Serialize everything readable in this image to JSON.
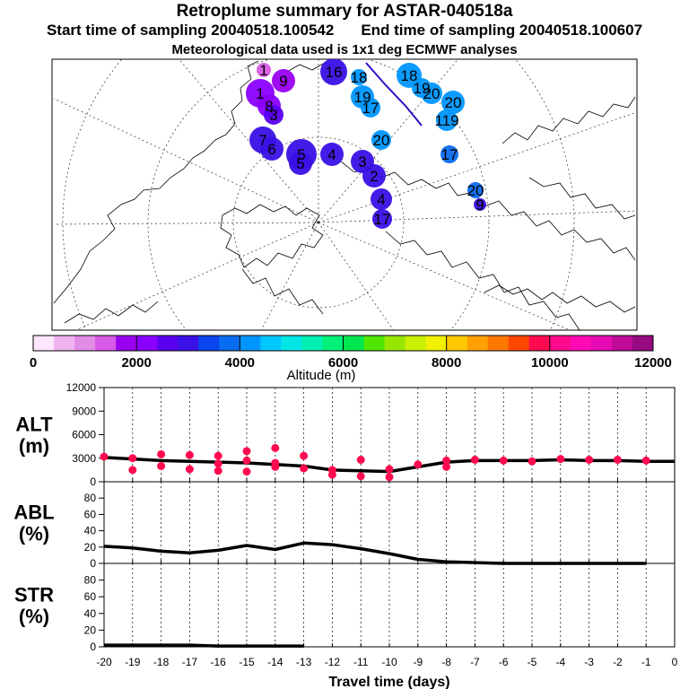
{
  "header": {
    "title": "Retroplume summary for ASTAR-040518a",
    "start_time": "Start time of sampling 20040518.100542",
    "end_time": "End time of sampling 20040518.100607",
    "met_info": "Meteorological data used is 1x1 deg ECMWF analyses"
  },
  "colorbar": {
    "label": "Altitude (m)",
    "ticks": [
      "0",
      "2000",
      "4000",
      "6000",
      "8000",
      "10000",
      "12000"
    ],
    "min": 0,
    "max": 12000,
    "step": 500,
    "colors": [
      "#ffe6ff",
      "#f0b4f0",
      "#e38ce6",
      "#d95ae6",
      "#9a00f0",
      "#8a00ff",
      "#5a00f0",
      "#3a10e6",
      "#0a46ee",
      "#0a6cf0",
      "#0096ff",
      "#00c8ff",
      "#00e6e6",
      "#00f0b4",
      "#00f078",
      "#00e650",
      "#50e600",
      "#96e600",
      "#c8f000",
      "#f0f000",
      "#ffc800",
      "#ffa000",
      "#ff7800",
      "#ff4600",
      "#ff0a50",
      "#ff0a8c",
      "#ff0ab4",
      "#e60ab4",
      "#be0a96",
      "#960a82"
    ]
  },
  "map": {
    "plume_color": "#2814c8",
    "labels": [
      {
        "t": "1",
        "c": "#d95ae6"
      },
      {
        "t": "9",
        "c": "#9a00f0"
      },
      {
        "t": "1",
        "c": "#8a00ff"
      },
      {
        "t": "8",
        "c": "#8a00ff"
      },
      {
        "t": "3",
        "c": "#5a00f0"
      },
      {
        "t": "7",
        "c": "#3a10e6"
      },
      {
        "t": "6",
        "c": "#3a10e6"
      },
      {
        "t": "5",
        "c": "#3a10e6"
      },
      {
        "t": "5",
        "c": "#3a10e6"
      },
      {
        "t": "4",
        "c": "#3a10e6"
      },
      {
        "t": "3",
        "c": "#3a10e6"
      },
      {
        "t": "2",
        "c": "#3a10e6"
      },
      {
        "t": "4",
        "c": "#3a10e6"
      },
      {
        "t": "17",
        "c": "#3a10e6"
      },
      {
        "t": "16",
        "c": "#3a10e6"
      },
      {
        "t": "18",
        "c": "#0096ff"
      },
      {
        "t": "19",
        "c": "#0096ff"
      },
      {
        "t": "17",
        "c": "#0096ff"
      },
      {
        "t": "18",
        "c": "#0096ff"
      },
      {
        "t": "19",
        "c": "#0096ff"
      },
      {
        "t": "20",
        "c": "#0096ff"
      },
      {
        "t": "20",
        "c": "#0096ff"
      },
      {
        "t": "119",
        "c": "#0096ff"
      },
      {
        "t": "20",
        "c": "#0096ff"
      },
      {
        "t": "17",
        "c": "#0a6cf0"
      },
      {
        "t": "20",
        "c": "#0a6cf0"
      },
      {
        "t": "9",
        "c": "#3a10e6"
      }
    ]
  },
  "chart_data": [
    {
      "type": "scatter",
      "ylabel": "ALT\n(m)",
      "ylabel_lines": [
        "ALT",
        "(m)"
      ],
      "ylim": [
        0,
        12000
      ],
      "yticks": [
        "12000",
        "9000",
        "6000",
        "3000",
        "0"
      ],
      "ytick_values": [
        12000,
        9000,
        6000,
        3000,
        0
      ],
      "series": [
        {
          "name": "mean altitude",
          "type": "line",
          "x": [
            -20,
            -19,
            -18,
            -17,
            -16,
            -15,
            -14,
            -13,
            -12,
            -11,
            -10,
            -9,
            -8,
            -7,
            -6,
            -5,
            -4,
            -3,
            -2,
            -1,
            0
          ],
          "y": [
            3100,
            2900,
            2700,
            2600,
            2500,
            2400,
            2200,
            2000,
            1500,
            1400,
            1300,
            1900,
            2500,
            2700,
            2700,
            2700,
            2800,
            2700,
            2700,
            2600,
            2600
          ]
        },
        {
          "name": "cluster altitudes",
          "type": "scatter",
          "color": "#ff0a50",
          "points": [
            [
              -20,
              3200
            ],
            [
              -19,
              3000
            ],
            [
              -19,
              1500
            ],
            [
              -18,
              3500
            ],
            [
              -18,
              2000
            ],
            [
              -17,
              3400
            ],
            [
              -17,
              1600
            ],
            [
              -16,
              3300
            ],
            [
              -16,
              2300
            ],
            [
              -16,
              1400
            ],
            [
              -15,
              3900
            ],
            [
              -15,
              2700
            ],
            [
              -15,
              1300
            ],
            [
              -14,
              4300
            ],
            [
              -14,
              2400
            ],
            [
              -14,
              1900
            ],
            [
              -13,
              3300
            ],
            [
              -13,
              1700
            ],
            [
              -12,
              1500
            ],
            [
              -12,
              900
            ],
            [
              -11,
              2800
            ],
            [
              -11,
              700
            ],
            [
              -10,
              1600
            ],
            [
              -10,
              600
            ],
            [
              -9,
              2200
            ],
            [
              -8,
              2700
            ],
            [
              -8,
              1900
            ],
            [
              -7,
              2800
            ],
            [
              -6,
              2700
            ],
            [
              -5,
              2600
            ],
            [
              -4,
              2900
            ],
            [
              -3,
              2800
            ],
            [
              -2,
              2800
            ],
            [
              -1,
              2700
            ]
          ]
        }
      ]
    },
    {
      "type": "line",
      "ylabel": "ABL\n(%)",
      "ylabel_lines": [
        "ABL",
        "(%)"
      ],
      "ylim": [
        0,
        100
      ],
      "yticks": [
        "80",
        "60",
        "40",
        "20",
        "0"
      ],
      "ytick_values": [
        80,
        60,
        40,
        20,
        0
      ],
      "series": [
        {
          "name": "ABL fraction",
          "x": [
            -20,
            -19,
            -18,
            -17,
            -16,
            -15,
            -14,
            -13,
            -12,
            -11,
            -10,
            -9,
            -8,
            -7,
            -6,
            -5,
            -4,
            -3,
            -2,
            -1
          ],
          "y": [
            21,
            19,
            15,
            13,
            16,
            22,
            17,
            25,
            23,
            18,
            12,
            5,
            2,
            1,
            0,
            0,
            0,
            0,
            0,
            0
          ]
        }
      ]
    },
    {
      "type": "line",
      "ylabel": "STR\n(%)",
      "ylabel_lines": [
        "STR",
        "(%)"
      ],
      "ylim": [
        0,
        100
      ],
      "yticks": [
        "80",
        "60",
        "40",
        "20",
        "0"
      ],
      "ytick_values": [
        80,
        60,
        40,
        20,
        0
      ],
      "xlabel": "Travel time (days)",
      "xticks": [
        "-20",
        "-19",
        "-18",
        "-17",
        "-16",
        "-15",
        "-14",
        "-13",
        "-12",
        "-11",
        "-10",
        "-9",
        "-8",
        "-7",
        "-6",
        "-5",
        "-4",
        "-3",
        "-2",
        "-1",
        "0"
      ],
      "xtick_values": [
        -20,
        -19,
        -18,
        -17,
        -16,
        -15,
        -14,
        -13,
        -12,
        -11,
        -10,
        -9,
        -8,
        -7,
        -6,
        -5,
        -4,
        -3,
        -2,
        -1,
        0
      ],
      "series": [
        {
          "name": "STR fraction",
          "x": [
            -20,
            -19,
            -18,
            -17,
            -16,
            -15,
            -14,
            -13
          ],
          "y": [
            2,
            2,
            2,
            2,
            1,
            1,
            1,
            1
          ]
        }
      ]
    }
  ]
}
